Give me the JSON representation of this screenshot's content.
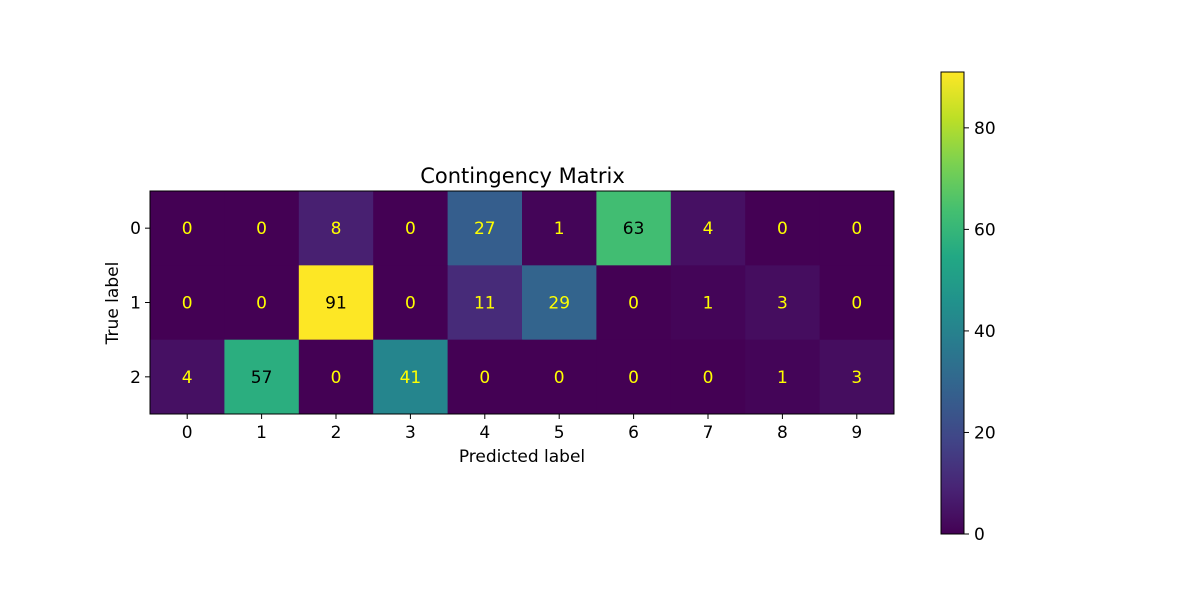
{
  "chart_data": {
    "type": "heatmap",
    "title": "Contingency Matrix",
    "xlabel": "Predicted label",
    "ylabel": "True label",
    "x_ticks": [
      "0",
      "1",
      "2",
      "3",
      "4",
      "5",
      "6",
      "7",
      "8",
      "9"
    ],
    "y_ticks": [
      "0",
      "1",
      "2"
    ],
    "values": [
      [
        0,
        0,
        8,
        0,
        27,
        1,
        63,
        4,
        0,
        0
      ],
      [
        0,
        0,
        91,
        0,
        11,
        29,
        0,
        1,
        3,
        0
      ],
      [
        4,
        57,
        0,
        41,
        0,
        0,
        0,
        0,
        1,
        3
      ]
    ],
    "colormap": "viridis",
    "vmin": 0,
    "vmax": 91,
    "colorbar_ticks": [
      "0",
      "20",
      "40",
      "60",
      "80"
    ],
    "colorbar_tick_values": [
      0,
      20,
      40,
      60,
      80
    ],
    "label_color_dark": "#000000",
    "label_color_light": "#ffff00"
  }
}
